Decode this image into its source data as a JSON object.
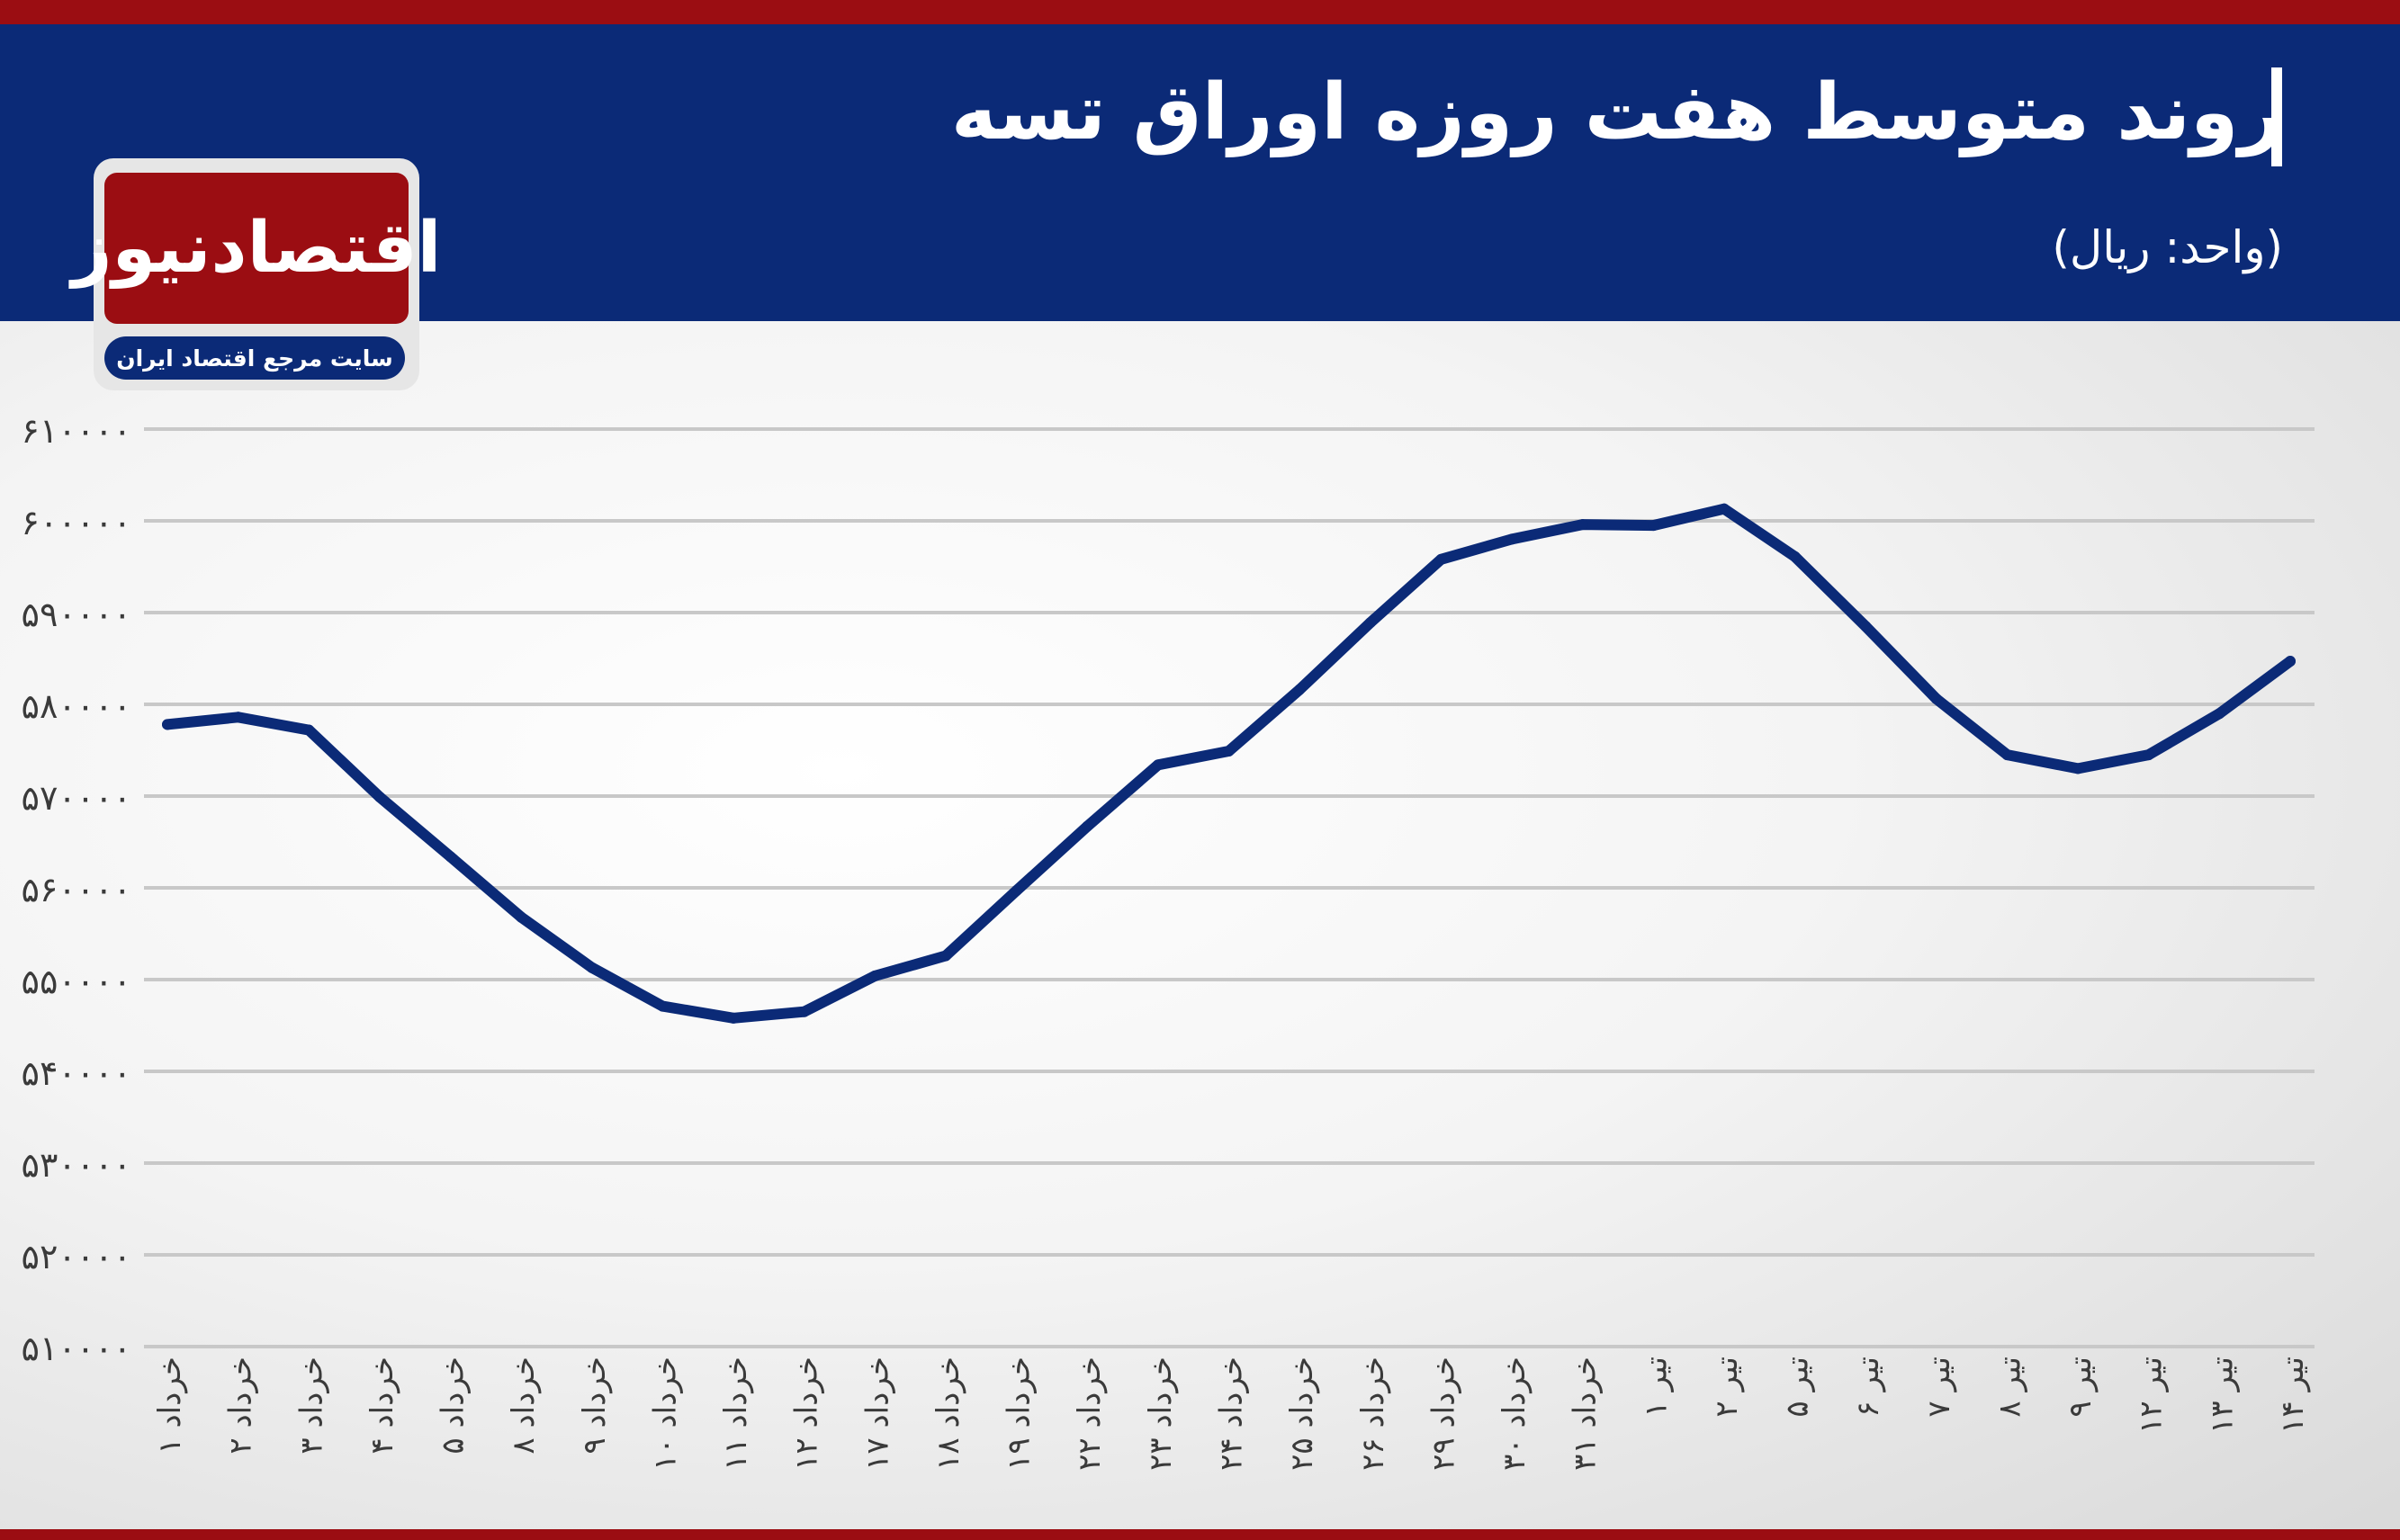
{
  "header": {
    "title": "روند متوسط هفت روزه اوراق تسه",
    "subtitle": "(واحد: ریال)"
  },
  "logo": {
    "name": "اقتصادنیوز",
    "tagline": "سایت مرجع اقتصاد ایران"
  },
  "colors": {
    "header_bg": "#0b2a77",
    "accent_red": "#9b0d12",
    "line": "#0b2a77",
    "grid": "#c8c8c8",
    "tick_text": "#3a3a3a"
  },
  "chart_data": {
    "type": "line",
    "title": "روند متوسط هفت روزه اوراق تسه",
    "ylabel": "(واحد: ریال)",
    "xlabel": "",
    "ylim": [
      510000,
      610000
    ],
    "yticks": [
      {
        "value": 510000,
        "label": "۵۱۰۰۰۰"
      },
      {
        "value": 520000,
        "label": "۵۲۰۰۰۰"
      },
      {
        "value": 530000,
        "label": "۵۳۰۰۰۰"
      },
      {
        "value": 540000,
        "label": "۵۴۰۰۰۰"
      },
      {
        "value": 550000,
        "label": "۵۵۰۰۰۰"
      },
      {
        "value": 560000,
        "label": "۵۶۰۰۰۰"
      },
      {
        "value": 570000,
        "label": "۵۷۰۰۰۰"
      },
      {
        "value": 580000,
        "label": "۵۸۰۰۰۰"
      },
      {
        "value": 590000,
        "label": "۵۹۰۰۰۰"
      },
      {
        "value": 600000,
        "label": "۶۰۰۰۰۰"
      },
      {
        "value": 610000,
        "label": "۶۱۰۰۰۰"
      }
    ],
    "grid": true,
    "categories": [
      "۱ خرداد",
      "۲ خرداد",
      "۳ خرداد",
      "۴ خرداد",
      "۵ خرداد",
      "۸ خرداد",
      "۹ خرداد",
      "۱۰ خرداد",
      "۱۱ خرداد",
      "۱۲ خرداد",
      "۱۷ خرداد",
      "۱۸ خرداد",
      "۱۹ خرداد",
      "۲۲ خرداد",
      "۲۳ خرداد",
      "۲۴ خرداد",
      "۲۵ خرداد",
      "۲۶ خرداد",
      "۲۹ خرداد",
      "۳۰ خرداد",
      "۳۱ خرداد",
      "۱ تیر",
      "۲ تیر",
      "۵ تیر",
      "۶ تیر",
      "۷ تیر",
      "۸ تیر",
      "۹ تیر",
      "۱۲ تیر",
      "۱۳ تیر",
      "۱۴ تیر"
    ],
    "series": [
      {
        "values": [
          577800,
          578600,
          577200,
          569900,
          563400,
          556800,
          551300,
          547100,
          545800,
          546500,
          550400,
          552600,
          559700,
          566700,
          573400,
          574900,
          581600,
          588900,
          595800,
          598000,
          599600,
          599500,
          601300,
          596100,
          588500,
          580600,
          574500,
          573000,
          574500,
          579000,
          584700
        ]
      }
    ]
  }
}
